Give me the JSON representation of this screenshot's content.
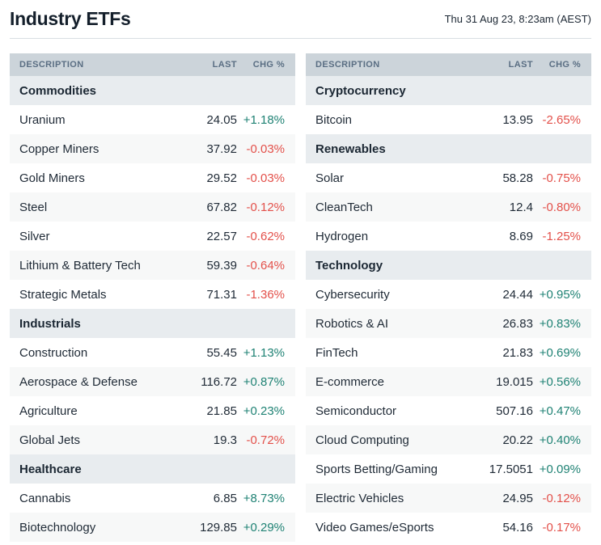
{
  "header": {
    "title": "Industry ETFs",
    "timestamp": "Thu 31 Aug 23, 8:23am (AEST)"
  },
  "colors": {
    "positive": "#1f8274",
    "negative": "#e3504a",
    "header_bg": "#ccd4da",
    "header_text": "#5a6e83",
    "section_bg": "#e8ecef",
    "row_alt_bg": "#f7f8f8",
    "text": "#1f2a36"
  },
  "tables": [
    {
      "id": "left",
      "columns": [
        "DESCRIPTION",
        "LAST",
        "CHG %"
      ],
      "sections": [
        {
          "title": "Commodities",
          "rows": [
            {
              "name": "Uranium",
              "last": "24.05",
              "chg": "+1.18%"
            },
            {
              "name": "Copper Miners",
              "last": "37.92",
              "chg": "-0.03%"
            },
            {
              "name": "Gold Miners",
              "last": "29.52",
              "chg": "-0.03%"
            },
            {
              "name": "Steel",
              "last": "67.82",
              "chg": "-0.12%"
            },
            {
              "name": "Silver",
              "last": "22.57",
              "chg": "-0.62%"
            },
            {
              "name": "Lithium & Battery Tech",
              "last": "59.39",
              "chg": "-0.64%"
            },
            {
              "name": "Strategic Metals",
              "last": "71.31",
              "chg": "-1.36%"
            }
          ]
        },
        {
          "title": "Industrials",
          "rows": [
            {
              "name": "Construction",
              "last": "55.45",
              "chg": "+1.13%"
            },
            {
              "name": "Aerospace & Defense",
              "last": "116.72",
              "chg": "+0.87%"
            },
            {
              "name": "Agriculture",
              "last": "21.85",
              "chg": "+0.23%"
            },
            {
              "name": "Global Jets",
              "last": "19.3",
              "chg": "-0.72%"
            }
          ]
        },
        {
          "title": "Healthcare",
          "rows": [
            {
              "name": "Cannabis",
              "last": "6.85",
              "chg": "+8.73%"
            },
            {
              "name": "Biotechnology",
              "last": "129.85",
              "chg": "+0.29%"
            }
          ]
        }
      ]
    },
    {
      "id": "right",
      "columns": [
        "DESCRIPTION",
        "LAST",
        "CHG %"
      ],
      "sections": [
        {
          "title": "Cryptocurrency",
          "rows": [
            {
              "name": "Bitcoin",
              "last": "13.95",
              "chg": "-2.65%"
            }
          ]
        },
        {
          "title": "Renewables",
          "rows": [
            {
              "name": "Solar",
              "last": "58.28",
              "chg": "-0.75%"
            },
            {
              "name": "CleanTech",
              "last": "12.4",
              "chg": "-0.80%"
            },
            {
              "name": "Hydrogen",
              "last": "8.69",
              "chg": "-1.25%"
            }
          ]
        },
        {
          "title": "Technology",
          "rows": [
            {
              "name": "Cybersecurity",
              "last": "24.44",
              "chg": "+0.95%"
            },
            {
              "name": "Robotics & AI",
              "last": "26.83",
              "chg": "+0.83%"
            },
            {
              "name": "FinTech",
              "last": "21.83",
              "chg": "+0.69%"
            },
            {
              "name": "E-commerce",
              "last": "19.015",
              "chg": "+0.56%"
            },
            {
              "name": "Semiconductor",
              "last": "507.16",
              "chg": "+0.47%"
            },
            {
              "name": "Cloud Computing",
              "last": "20.22",
              "chg": "+0.40%"
            },
            {
              "name": "Sports Betting/Gaming",
              "last": "17.5051",
              "chg": "+0.09%"
            },
            {
              "name": "Electric Vehicles",
              "last": "24.95",
              "chg": "-0.12%"
            },
            {
              "name": "Video Games/eSports",
              "last": "54.16",
              "chg": "-0.17%"
            }
          ]
        }
      ]
    }
  ]
}
